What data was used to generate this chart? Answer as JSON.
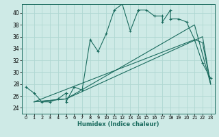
{
  "title": "",
  "xlabel": "Humidex (Indice chaleur)",
  "bg_color": "#ceeae6",
  "grid_color": "#b0d8d2",
  "line_color": "#1a6b5e",
  "xlim": [
    -0.5,
    23.5
  ],
  "ylim": [
    23,
    41.5
  ],
  "xticks": [
    0,
    1,
    2,
    3,
    4,
    5,
    6,
    7,
    8,
    9,
    10,
    11,
    12,
    13,
    14,
    15,
    16,
    17,
    18,
    19,
    20,
    21,
    22,
    23
  ],
  "yticks": [
    24,
    26,
    28,
    30,
    32,
    34,
    36,
    38,
    40
  ],
  "series_main": {
    "x": [
      0,
      1,
      2,
      3,
      4,
      5,
      5,
      6,
      7,
      8,
      9,
      10,
      11,
      12,
      13,
      14,
      14,
      15,
      16,
      17,
      17,
      18,
      18,
      19,
      20,
      21,
      22,
      23
    ],
    "y": [
      27.5,
      26.5,
      25.0,
      25.0,
      25.5,
      26.5,
      25.0,
      27.5,
      27.0,
      35.5,
      33.5,
      36.5,
      40.5,
      41.5,
      37.0,
      40.5,
      40.5,
      40.5,
      39.5,
      39.5,
      38.5,
      40.5,
      39.0,
      39.0,
      38.5,
      35.5,
      31.5,
      29.0
    ]
  },
  "series_line1": {
    "x": [
      1,
      5,
      22,
      23
    ],
    "y": [
      25.0,
      25.5,
      36.0,
      28.0
    ]
  },
  "series_line2": {
    "x": [
      1,
      5,
      21,
      23
    ],
    "y": [
      25.0,
      25.5,
      38.0,
      28.0
    ]
  },
  "series_line3": {
    "x": [
      1,
      21,
      22,
      23
    ],
    "y": [
      25.0,
      35.5,
      35.0,
      28.0
    ]
  }
}
